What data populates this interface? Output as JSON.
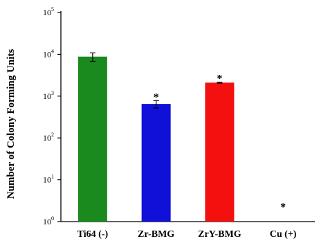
{
  "chart_data": {
    "type": "bar",
    "ylabel": "Number of Colony Forming Units",
    "xlabel": "",
    "yscale": "log",
    "ylim": [
      1,
      100000
    ],
    "y_ticks": [
      {
        "base": "10",
        "exp": "0"
      },
      {
        "base": "10",
        "exp": "1"
      },
      {
        "base": "10",
        "exp": "2"
      },
      {
        "base": "10",
        "exp": "3"
      },
      {
        "base": "10",
        "exp": "4"
      },
      {
        "base": "10",
        "exp": "5"
      }
    ],
    "categories": [
      "Ti64 (-)",
      "Zr-BMG",
      "ZrY-BMG",
      "Cu (+)"
    ],
    "values": [
      8800,
      650,
      2100,
      null
    ],
    "errors": [
      2000,
      130,
      60,
      null
    ],
    "significance": [
      "",
      "*",
      "*",
      "*"
    ],
    "colors": [
      "#1a8a1f",
      "#1010d8",
      "#f51010",
      "#000000"
    ],
    "grid": false
  }
}
